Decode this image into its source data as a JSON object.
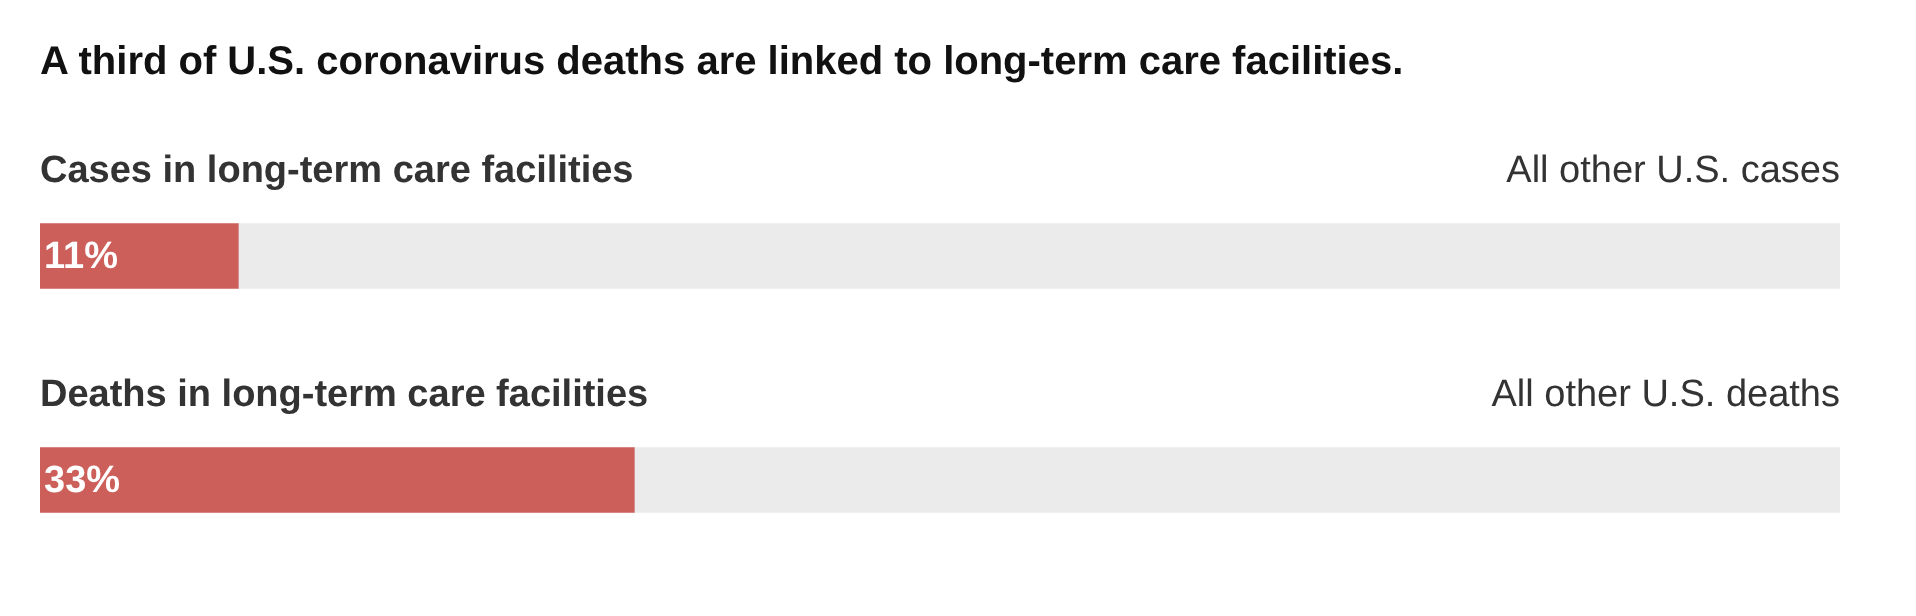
{
  "chart_data": {
    "type": "bar",
    "orientation": "horizontal",
    "stacked": true,
    "title": "A third of U.S. coronavirus deaths are linked to long-term care facilities.",
    "categories": [
      "Cases in long-term care facilities",
      "Deaths in long-term care facilities"
    ],
    "series": [
      {
        "color": "#cc5f5a",
        "values": [
          11,
          33
        ],
        "value_labels": [
          "11%",
          "33%"
        ]
      },
      {
        "color": "#ebebeb",
        "values": [
          89,
          67
        ]
      }
    ],
    "xlim": [
      0,
      100
    ],
    "legend": false,
    "annotations": [
      {
        "text": "All other U.S. cases",
        "x": 100,
        "y": "Cases in long-term care facilities"
      },
      {
        "text": "All other U.S. deaths",
        "x": 100,
        "y": "Deaths in long-term care facilities"
      }
    ]
  }
}
